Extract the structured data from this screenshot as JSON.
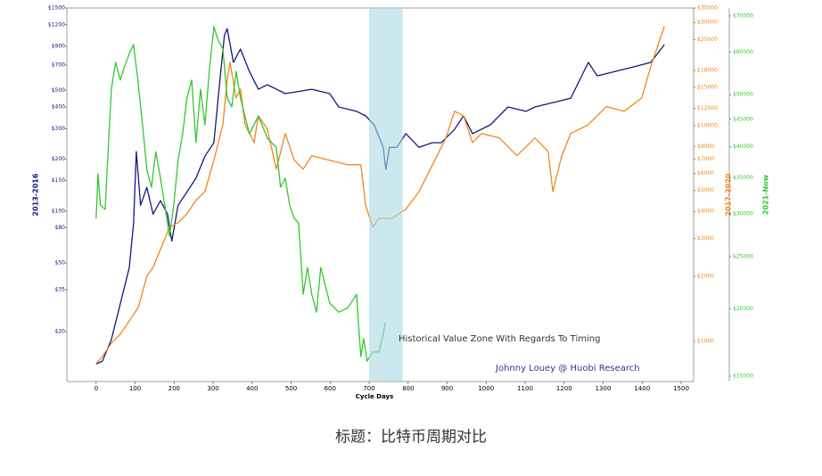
{
  "chart_data": {
    "type": "line",
    "log_scale": true,
    "xlabel": "Cycle Days",
    "caption": "标题：比特币周期对比",
    "xlim": [
      -75,
      1532
    ],
    "xticks": [
      0,
      100,
      200,
      300,
      400,
      500,
      600,
      700,
      800,
      900,
      1000,
      1100,
      1200,
      1300,
      1400,
      1500
    ],
    "ylim": [
      10.3,
      1500
    ],
    "yticks": [
      {
        "value": 20,
        "label": "$20"
      },
      {
        "value": 35,
        "label": "$35"
      },
      {
        "value": 50,
        "label": "$50"
      },
      {
        "value": 80,
        "label": "$80"
      },
      {
        "value": 100,
        "label": "$100"
      },
      {
        "value": 150,
        "label": "$150"
      },
      {
        "value": 200,
        "label": "$200"
      },
      {
        "value": 300,
        "label": "$300"
      },
      {
        "value": 400,
        "label": "$400"
      },
      {
        "value": 500,
        "label": "$500"
      },
      {
        "value": 700,
        "label": "$700"
      },
      {
        "value": 900,
        "label": "$900"
      },
      {
        "value": 1200,
        "label": "$1200"
      },
      {
        "value": 1500,
        "label": "$1500"
      }
    ],
    "y2lim": [
      652,
      35000
    ],
    "y2ticks": [
      {
        "value": 1000,
        "label": "$1000"
      },
      {
        "value": 2000,
        "label": "$2000"
      },
      {
        "value": 3000,
        "label": "$3000"
      },
      {
        "value": 4000,
        "label": "$4000"
      },
      {
        "value": 5000,
        "label": "$5000"
      },
      {
        "value": 6000,
        "label": "$6000"
      },
      {
        "value": 7000,
        "label": "$7000"
      },
      {
        "value": 8000,
        "label": "$8000"
      },
      {
        "value": 10000,
        "label": "$10000"
      },
      {
        "value": 12000,
        "label": "$12000"
      },
      {
        "value": 15000,
        "label": "$15000"
      },
      {
        "value": 18000,
        "label": "$18000"
      },
      {
        "value": 25000,
        "label": "$25000"
      },
      {
        "value": 30000,
        "label": "$30000"
      },
      {
        "value": 35000,
        "label": "$35000"
      }
    ],
    "y3lim": [
      14660,
      72400
    ],
    "y3ticks": [
      {
        "value": 15000,
        "label": "$15000"
      },
      {
        "value": 20000,
        "label": "$20000"
      },
      {
        "value": 25000,
        "label": "$25000"
      },
      {
        "value": 30000,
        "label": "$30000"
      },
      {
        "value": 35000,
        "label": "$35000"
      },
      {
        "value": 40000,
        "label": "$40000"
      },
      {
        "value": 45000,
        "label": "$45000"
      },
      {
        "value": 50000,
        "label": "$50000"
      },
      {
        "value": 60000,
        "label": "$60000"
      },
      {
        "value": 70000,
        "label": "$70000"
      }
    ],
    "highlight_range": [
      700,
      786
    ],
    "highlight_color": "#a9d8e4",
    "annotations": [
      {
        "text": "Historical Value Zone With Regards To Timing",
        "color": "#333333"
      },
      {
        "text": "Johnny Louey @ Huobi Research",
        "color": "#2a3a9a"
      }
    ],
    "series": [
      {
        "name": "2013-2016",
        "color": "#161680",
        "axis": "y",
        "x": [
          0,
          16,
          39,
          62,
          85,
          96,
          103,
          114,
          130,
          146,
          165,
          183,
          194,
          210,
          233,
          256,
          279,
          302,
          313,
          329,
          336,
          352,
          370,
          393,
          416,
          439,
          485,
          553,
          599,
          622,
          668,
          691,
          713,
          736,
          743,
          752,
          771,
          794,
          828,
          862,
          885,
          919,
          942,
          965,
          1011,
          1056,
          1102,
          1125,
          1171,
          1217,
          1262,
          1285,
          1331,
          1377,
          1422,
          1457
        ],
        "values": [
          13,
          13.5,
          18,
          29,
          47,
          85,
          221,
          108,
          137,
          96,
          115,
          96,
          67,
          108,
          129,
          155,
          208,
          249,
          451,
          1040,
          1140,
          726,
          867,
          644,
          508,
          539,
          479,
          508,
          479,
          401,
          378,
          356,
          316,
          234,
          174,
          234,
          234,
          281,
          234,
          249,
          249,
          297,
          356,
          281,
          316,
          401,
          378,
          401,
          425,
          451,
          726,
          607,
          644,
          684,
          726,
          920
        ]
      },
      {
        "name": "2017-2020",
        "color": "#f0881a",
        "axis": "y2",
        "x": [
          0,
          16,
          39,
          62,
          85,
          108,
          130,
          146,
          165,
          188,
          210,
          233,
          256,
          279,
          302,
          325,
          336,
          343,
          359,
          370,
          382,
          405,
          416,
          439,
          462,
          485,
          508,
          531,
          553,
          599,
          645,
          679,
          691,
          709,
          725,
          759,
          794,
          828,
          851,
          874,
          897,
          919,
          942,
          965,
          988,
          1034,
          1079,
          1125,
          1159,
          1171,
          1194,
          1217,
          1262,
          1308,
          1354,
          1399,
          1422,
          1457
        ],
        "values": [
          789,
          851,
          981,
          1079,
          1245,
          1436,
          2004,
          2203,
          2666,
          3381,
          3548,
          3899,
          4498,
          4943,
          6902,
          10093,
          16255,
          19634,
          13430,
          14757,
          10093,
          8337,
          11100,
          9616,
          6281,
          9183,
          6902,
          6281,
          7242,
          6902,
          6580,
          6580,
          4285,
          3381,
          3715,
          3715,
          4093,
          4943,
          5984,
          7242,
          8750,
          11640,
          11100,
          8337,
          9183,
          8750,
          7242,
          8750,
          7586,
          4943,
          7242,
          9183,
          10093,
          12220,
          11640,
          13430,
          18750,
          28770
        ]
      },
      {
        "name": "2021-Now",
        "color": "#33c72e",
        "axis": "y3",
        "x": [
          0,
          5,
          11,
          23,
          32,
          39,
          50,
          62,
          73,
          85,
          96,
          107,
          119,
          130,
          142,
          153,
          165,
          176,
          188,
          199,
          210,
          222,
          233,
          245,
          256,
          268,
          279,
          290,
          302,
          313,
          325,
          336,
          348,
          359,
          370,
          393,
          416,
          439,
          462,
          473,
          485,
          496,
          508,
          519,
          531,
          542,
          553,
          565,
          576,
          599,
          622,
          645,
          668,
          672,
          679,
          686,
          695,
          709,
          725,
          736,
          741
        ],
        "values": [
          29440,
          35650,
          31190,
          30620,
          40740,
          51170,
          57410,
          53210,
          56360,
          59570,
          61940,
          53210,
          43950,
          36310,
          33650,
          39170,
          34990,
          31190,
          27290,
          31190,
          37760,
          42270,
          49320,
          53210,
          40740,
          51170,
          43950,
          55210,
          66830,
          63100,
          60810,
          49320,
          47420,
          55210,
          49320,
          42270,
          45600,
          41500,
          39900,
          33650,
          34990,
          31190,
          29440,
          28900,
          21280,
          23880,
          21280,
          19720,
          23880,
          20510,
          19720,
          20090,
          21280,
          19010,
          16300,
          17620,
          16000,
          16630,
          16630,
          17950,
          18840
        ]
      }
    ]
  }
}
